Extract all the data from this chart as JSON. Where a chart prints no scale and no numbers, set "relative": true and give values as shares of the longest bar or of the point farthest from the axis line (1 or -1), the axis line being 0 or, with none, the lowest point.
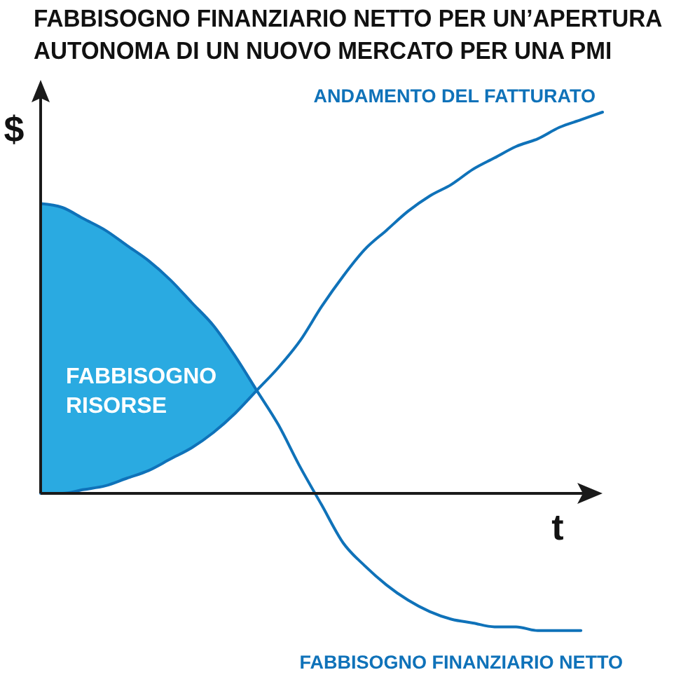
{
  "chart_data": {
    "type": "line",
    "title": "FABBISOGNO FINANZIARIO NETTO PER UN’APERTURA\nAUTONOMA DI UN NUOVO MERCATO PER UNA PMI",
    "xlabel": "t",
    "ylabel": "$",
    "relative": true,
    "annotations": [
      "FABBISOGNO RISORSE"
    ],
    "categories": [
      null,
      null,
      null,
      null,
      null,
      null,
      null,
      null,
      null,
      null,
      null,
      null,
      null,
      null,
      null,
      null,
      null,
      null,
      null,
      null,
      null,
      null,
      null,
      null,
      null,
      null,
      null
    ],
    "series": [
      {
        "name": "ANDAMENTO DEL FATTURATO",
        "color": "#0f72b9",
        "values": [
          0,
          0,
          0.01,
          0.02,
          0.04,
          0.06,
          0.09,
          0.12,
          0.16,
          0.21,
          0.27,
          0.33,
          0.4,
          0.49,
          0.57,
          0.64,
          0.69,
          0.74,
          0.78,
          0.81,
          0.85,
          0.88,
          0.91,
          0.93,
          0.96,
          0.98,
          1
        ]
      },
      {
        "name": "FABBISOGNO FINANZIARIO NETTO",
        "color": "#0f72b9",
        "values": [
          0.76,
          0.75,
          0.72,
          0.69,
          0.65,
          0.61,
          0.56,
          0.5,
          0.44,
          0.36,
          0.27,
          0.18,
          0.07,
          -0.03,
          -0.13,
          -0.19,
          -0.24,
          -0.28,
          -0.31,
          -0.33,
          -0.34,
          -0.35,
          -0.35,
          -0.36,
          -0.36,
          -0.36,
          null
        ],
        "lower": [
          0,
          0,
          0.01,
          0.02,
          0.04,
          0.06,
          0.09,
          0.12,
          0.16,
          0.21,
          0.27,
          null,
          null,
          null,
          null,
          null,
          null,
          null,
          null,
          null,
          null,
          null,
          null,
          null,
          null,
          null,
          null
        ],
        "upper": [
          0.76,
          0.75,
          0.72,
          0.69,
          0.65,
          0.61,
          0.56,
          0.5,
          0.44,
          0.36,
          0.27,
          null,
          null,
          null,
          null,
          null,
          null,
          null,
          null,
          null,
          null,
          null,
          null,
          null,
          null,
          null,
          null
        ]
      }
    ]
  }
}
